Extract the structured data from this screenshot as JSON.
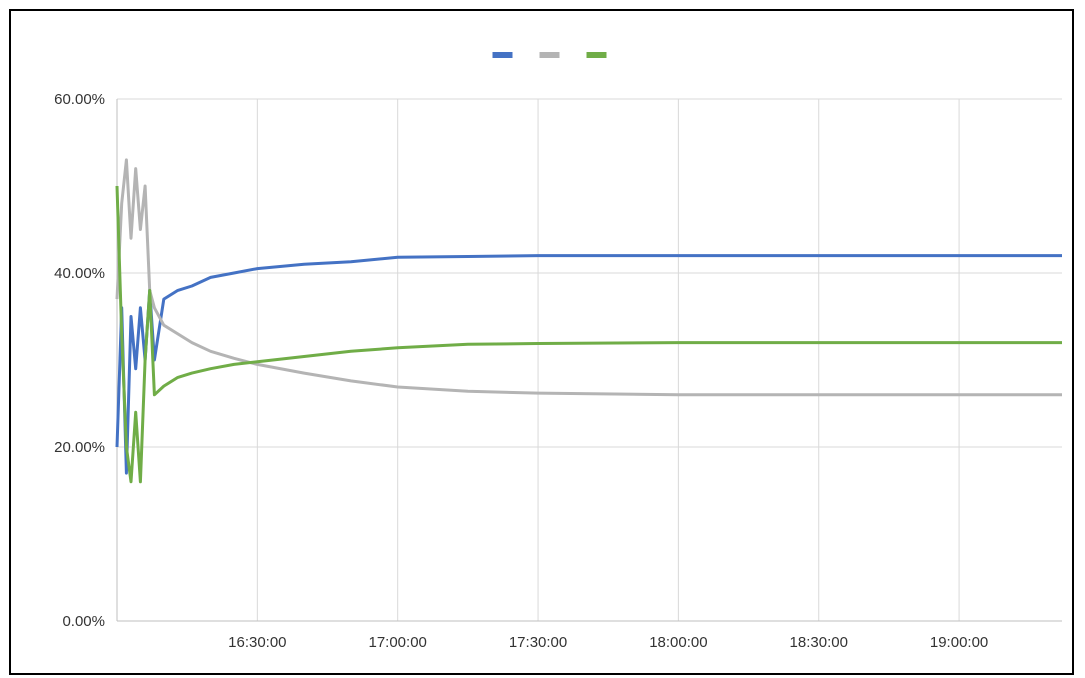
{
  "chart_data": {
    "type": "line",
    "title": "",
    "xlabel": "",
    "ylabel": "",
    "x_start": "16:00:00",
    "x_end": "19:22:00",
    "x_ticks": [
      "16:30:00",
      "17:00:00",
      "17:30:00",
      "18:00:00",
      "18:30:00",
      "19:00:00"
    ],
    "ylim": [
      0,
      60
    ],
    "y_ticks": [
      {
        "value": 0,
        "label": "0.00%"
      },
      {
        "value": 20,
        "label": "20.00%"
      },
      {
        "value": 40,
        "label": "40.00%"
      },
      {
        "value": 60,
        "label": "60.00%"
      }
    ],
    "y_unit": "%",
    "grid": true,
    "legend_position": "top",
    "series": [
      {
        "color": "#4472C4",
        "points": [
          [
            "16:00:00",
            20
          ],
          [
            "16:01:00",
            36
          ],
          [
            "16:02:00",
            17
          ],
          [
            "16:03:00",
            35
          ],
          [
            "16:04:00",
            29
          ],
          [
            "16:05:00",
            36
          ],
          [
            "16:06:00",
            30
          ],
          [
            "16:07:00",
            38
          ],
          [
            "16:08:00",
            30
          ],
          [
            "16:10:00",
            37
          ],
          [
            "16:13:00",
            38
          ],
          [
            "16:16:00",
            38.5
          ],
          [
            "16:20:00",
            39.5
          ],
          [
            "16:25:00",
            40
          ],
          [
            "16:30:00",
            40.5
          ],
          [
            "16:40:00",
            41
          ],
          [
            "16:50:00",
            41.3
          ],
          [
            "17:00:00",
            41.8
          ],
          [
            "17:15:00",
            41.9
          ],
          [
            "17:30:00",
            42
          ],
          [
            "18:00:00",
            42
          ],
          [
            "18:30:00",
            42
          ],
          [
            "19:00:00",
            42
          ],
          [
            "19:22:00",
            42
          ]
        ]
      },
      {
        "color": "#B4B4B4",
        "points": [
          [
            "16:00:00",
            37
          ],
          [
            "16:01:00",
            48
          ],
          [
            "16:02:00",
            53
          ],
          [
            "16:03:00",
            44
          ],
          [
            "16:04:00",
            52
          ],
          [
            "16:05:00",
            45
          ],
          [
            "16:06:00",
            50
          ],
          [
            "16:07:00",
            38
          ],
          [
            "16:08:00",
            36
          ],
          [
            "16:10:00",
            34
          ],
          [
            "16:13:00",
            33
          ],
          [
            "16:16:00",
            32
          ],
          [
            "16:20:00",
            31
          ],
          [
            "16:25:00",
            30.2
          ],
          [
            "16:30:00",
            29.5
          ],
          [
            "16:40:00",
            28.5
          ],
          [
            "16:50:00",
            27.6
          ],
          [
            "17:00:00",
            26.9
          ],
          [
            "17:15:00",
            26.4
          ],
          [
            "17:30:00",
            26.2
          ],
          [
            "18:00:00",
            26
          ],
          [
            "18:30:00",
            26
          ],
          [
            "19:00:00",
            26
          ],
          [
            "19:22:00",
            26
          ]
        ]
      },
      {
        "color": "#70AD47",
        "points": [
          [
            "16:00:00",
            50
          ],
          [
            "16:01:00",
            33
          ],
          [
            "16:02:00",
            20
          ],
          [
            "16:03:00",
            16
          ],
          [
            "16:04:00",
            24
          ],
          [
            "16:05:00",
            16
          ],
          [
            "16:06:00",
            30
          ],
          [
            "16:07:00",
            38
          ],
          [
            "16:08:00",
            26
          ],
          [
            "16:10:00",
            27
          ],
          [
            "16:13:00",
            28
          ],
          [
            "16:16:00",
            28.5
          ],
          [
            "16:20:00",
            29
          ],
          [
            "16:25:00",
            29.5
          ],
          [
            "16:30:00",
            29.8
          ],
          [
            "16:40:00",
            30.4
          ],
          [
            "16:50:00",
            31
          ],
          [
            "17:00:00",
            31.4
          ],
          [
            "17:15:00",
            31.8
          ],
          [
            "17:30:00",
            31.9
          ],
          [
            "18:00:00",
            32
          ],
          [
            "18:30:00",
            32
          ],
          [
            "19:00:00",
            32
          ],
          [
            "19:22:00",
            32
          ]
        ]
      }
    ]
  }
}
